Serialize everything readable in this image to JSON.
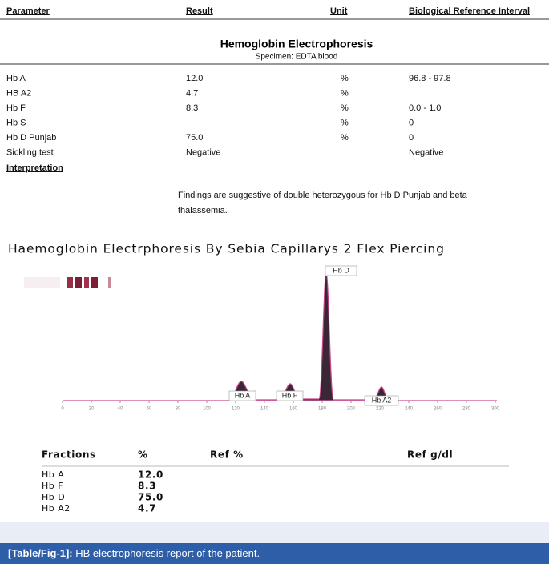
{
  "report": {
    "headers": [
      "Parameter",
      "Result",
      "Unit",
      "Biological Reference Interval"
    ],
    "title": "Hemoglobin Electrophoresis",
    "specimen": "Specimen: EDTA blood",
    "rows": [
      {
        "parameter": "Hb A",
        "result": "12.0",
        "unit": "%",
        "reference": "96.8 - 97.8"
      },
      {
        "parameter": "HB A2",
        "result": "4.7",
        "unit": "%"
      },
      {
        "parameter": "Hb F",
        "result": "8.3",
        "unit": "%",
        "reference": "0.0 - 1.0"
      },
      {
        "parameter": "Hb S",
        "result": "-",
        "unit": "%",
        "reference": "0"
      },
      {
        "parameter": "Hb D Punjab",
        "result": "75.0",
        "unit": "%",
        "reference": "0"
      },
      {
        "parameter": "Sickling test",
        "result": "Negative",
        "reference": "Negative"
      }
    ],
    "interpretation_heading": "Interpretation",
    "interpretation_lines": [
      "Findings are suggestive of double heterozygous for Hb D Punjab and beta",
      "thalassemia."
    ]
  },
  "electrophoresis": {
    "title": "Haemoglobin Electrphoresis By Sebia Capillarys 2 Flex Piercing",
    "peaks": [
      "Hb A",
      "Hb F",
      "Hb D",
      "Hb A2"
    ],
    "xlim": [
      0,
      300
    ],
    "xticks": [
      0,
      20,
      40,
      60,
      80,
      100,
      120,
      140,
      160,
      180,
      200,
      220,
      240,
      260,
      280,
      300
    ]
  },
  "fractions": {
    "headers": [
      "Fractions",
      "%",
      "Ref %",
      "Ref g/dl"
    ],
    "rows": [
      [
        "Hb A",
        "12.0"
      ],
      [
        "Hb F",
        "8.3"
      ],
      [
        "Hb D",
        "75.0"
      ],
      [
        "Hb A2",
        "4.7"
      ]
    ]
  },
  "caption": {
    "label": "[Table/Fig-1]:",
    "text": "HB electrophoresis report of the patient."
  }
}
